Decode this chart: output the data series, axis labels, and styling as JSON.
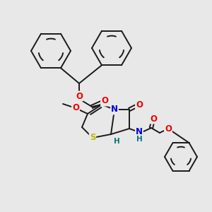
{
  "background_color": "#e8e8e8",
  "bond_color": "#1a1a1a",
  "atom_colors": {
    "N": "#0000dd",
    "O": "#ee0000",
    "S": "#bbbb00",
    "H": "#007777",
    "C": "#1a1a1a"
  },
  "figsize": [
    3.0,
    3.0
  ],
  "dpi": 100,
  "lw": 1.4
}
